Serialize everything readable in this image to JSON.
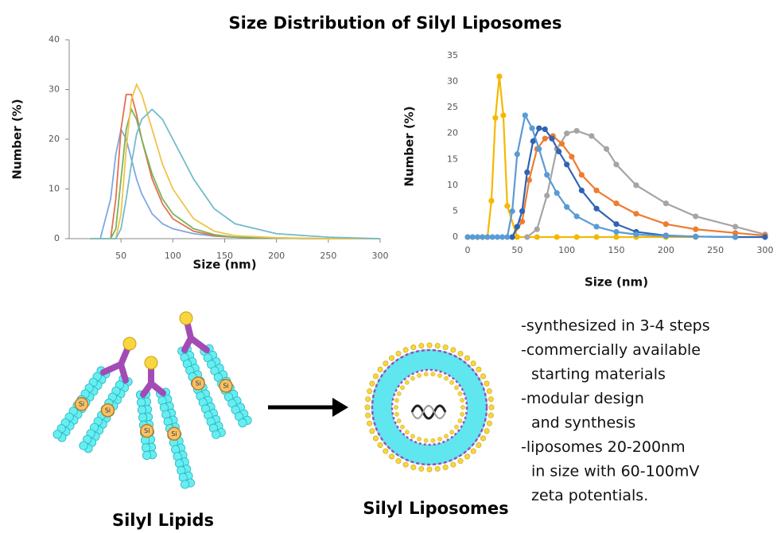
{
  "title": "Size Distribution of Silyl Liposomes",
  "chart_data": [
    {
      "type": "line",
      "x_label": "Size (nm)",
      "y_label": "Number (%)",
      "x": [
        20,
        30,
        40,
        45,
        50,
        55,
        60,
        65,
        70,
        80,
        90,
        100,
        120,
        140,
        160,
        200,
        250,
        300
      ],
      "series": [
        {
          "color": "#7ea7e3",
          "values": [
            0,
            0,
            8,
            17,
            22,
            20,
            16,
            12,
            9,
            5,
            3,
            2,
            1,
            0.5,
            0.3,
            0.1,
            0,
            0
          ]
        },
        {
          "color": "#e2714f",
          "values": [
            0,
            0,
            0,
            8,
            22,
            29,
            29,
            25,
            20,
            12,
            7,
            4,
            1.5,
            0.6,
            0.3,
            0.1,
            0,
            0
          ]
        },
        {
          "color": "#7ab35c",
          "values": [
            0,
            0,
            0,
            2,
            12,
            22,
            26,
            24,
            20,
            13,
            8,
            5,
            2,
            0.8,
            0.3,
            0.1,
            0,
            0
          ]
        },
        {
          "color": "#f2c24a",
          "values": [
            0,
            0,
            0,
            0,
            5,
            18,
            28,
            31,
            29,
            22,
            15,
            10,
            4,
            1.5,
            0.6,
            0.2,
            0,
            0
          ]
        },
        {
          "color": "#72bccb",
          "values": [
            0,
            0,
            0,
            0,
            2,
            8,
            15,
            21,
            24,
            26,
            24,
            20,
            12,
            6,
            3,
            1,
            0.3,
            0
          ]
        }
      ],
      "xlim": [
        0,
        300
      ],
      "xticks": [
        50,
        100,
        150,
        200,
        250,
        300
      ],
      "ylim": [
        0,
        40
      ],
      "yticks": [
        0,
        10,
        20,
        30,
        40
      ],
      "axis_lines": true,
      "markers": false
    },
    {
      "type": "line",
      "x_label": "Size (nm)",
      "y_label": "Number (%)",
      "series": [
        {
          "color": "#f5b800",
          "x": [
            0,
            5,
            10,
            15,
            20,
            24,
            28,
            32,
            36,
            40,
            50,
            70,
            90,
            110,
            130,
            150,
            170,
            200,
            230
          ],
          "values": [
            0,
            0,
            0,
            0,
            0,
            7,
            23,
            31,
            23.5,
            6,
            0,
            0,
            0,
            0,
            0,
            0,
            0,
            0,
            0
          ]
        },
        {
          "color": "#a5a5a5",
          "x": [
            60,
            70,
            80,
            90,
            100,
            110,
            125,
            140,
            150,
            170,
            200,
            230,
            270,
            300
          ],
          "values": [
            0,
            1.5,
            8,
            17,
            20,
            20.5,
            19.5,
            17,
            14,
            10,
            6.5,
            4,
            2,
            0.5
          ]
        },
        {
          "color": "#ed7d31",
          "x": [
            45,
            55,
            62,
            70,
            78,
            86,
            95,
            105,
            115,
            130,
            150,
            170,
            200,
            230,
            270,
            300
          ],
          "values": [
            0,
            3,
            11,
            17,
            19,
            19.5,
            18,
            15.5,
            12,
            9,
            6.5,
            4.5,
            2.5,
            1.5,
            0.8,
            0.3
          ]
        },
        {
          "color": "#2f64b5",
          "x": [
            45,
            50,
            55,
            60,
            66,
            72,
            78,
            85,
            92,
            100,
            115,
            130,
            150,
            170,
            200,
            230,
            270,
            300
          ],
          "values": [
            0,
            2,
            5,
            12.5,
            18.5,
            21,
            20.8,
            19,
            16.5,
            14,
            9,
            5.5,
            2.5,
            1,
            0.3,
            0.1,
            0,
            0
          ]
        },
        {
          "color": "#5b9bd5",
          "x": [
            0,
            5,
            10,
            15,
            20,
            25,
            30,
            35,
            40,
            45,
            50,
            58,
            65,
            72,
            80,
            90,
            100,
            110,
            130,
            150,
            170,
            200,
            230,
            270
          ],
          "values": [
            0,
            0,
            0,
            0,
            0,
            0,
            0,
            0,
            0,
            5,
            16,
            23.5,
            21,
            17,
            12,
            8.5,
            5.8,
            4,
            2,
            1,
            0.5,
            0.2,
            0.1,
            0
          ]
        }
      ],
      "xlim": [
        0,
        300
      ],
      "xticks": [
        0,
        50,
        100,
        150,
        200,
        250,
        300
      ],
      "ylim": [
        0,
        35
      ],
      "yticks": [
        0,
        5,
        10,
        15,
        20,
        25,
        30,
        35
      ],
      "axis_lines": false,
      "markers": true
    }
  ],
  "diagram": {
    "bead_label": "Si",
    "lipids_label": "Silyl Lipids",
    "liposomes_label": "Silyl Liposomes",
    "bullets": [
      [
        "-synthesized in 3-4 steps"
      ],
      [
        "-commercially available",
        "starting materials"
      ],
      [
        "-modular design",
        "and synthesis"
      ],
      [
        "-liposomes 20-200nm",
        "in size with 60-100mV",
        "zeta potentials."
      ]
    ]
  }
}
